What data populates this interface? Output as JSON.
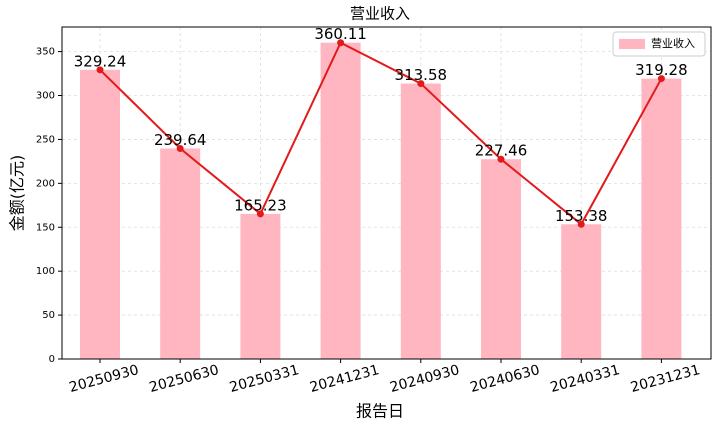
{
  "chart_data": {
    "type": "bar",
    "title": "营业收入",
    "x_label": "报告日",
    "y_label": "金额(亿元)",
    "categories": [
      "20250930",
      "20250630",
      "20250331",
      "20241231",
      "20240930",
      "20240630",
      "20240331",
      "20231231"
    ],
    "series": [
      {
        "name": "营业收入",
        "color": "#ffb6c1",
        "values": [
          329.24,
          239.64,
          165.23,
          360.11,
          313.58,
          227.46,
          153.38,
          319.28
        ]
      }
    ],
    "line_color": "#e31a1c",
    "ylim": [
      0,
      378
    ],
    "yticks": [
      0,
      50,
      100,
      150,
      200,
      250,
      300,
      350
    ],
    "grid": true,
    "legend": "upper right"
  }
}
